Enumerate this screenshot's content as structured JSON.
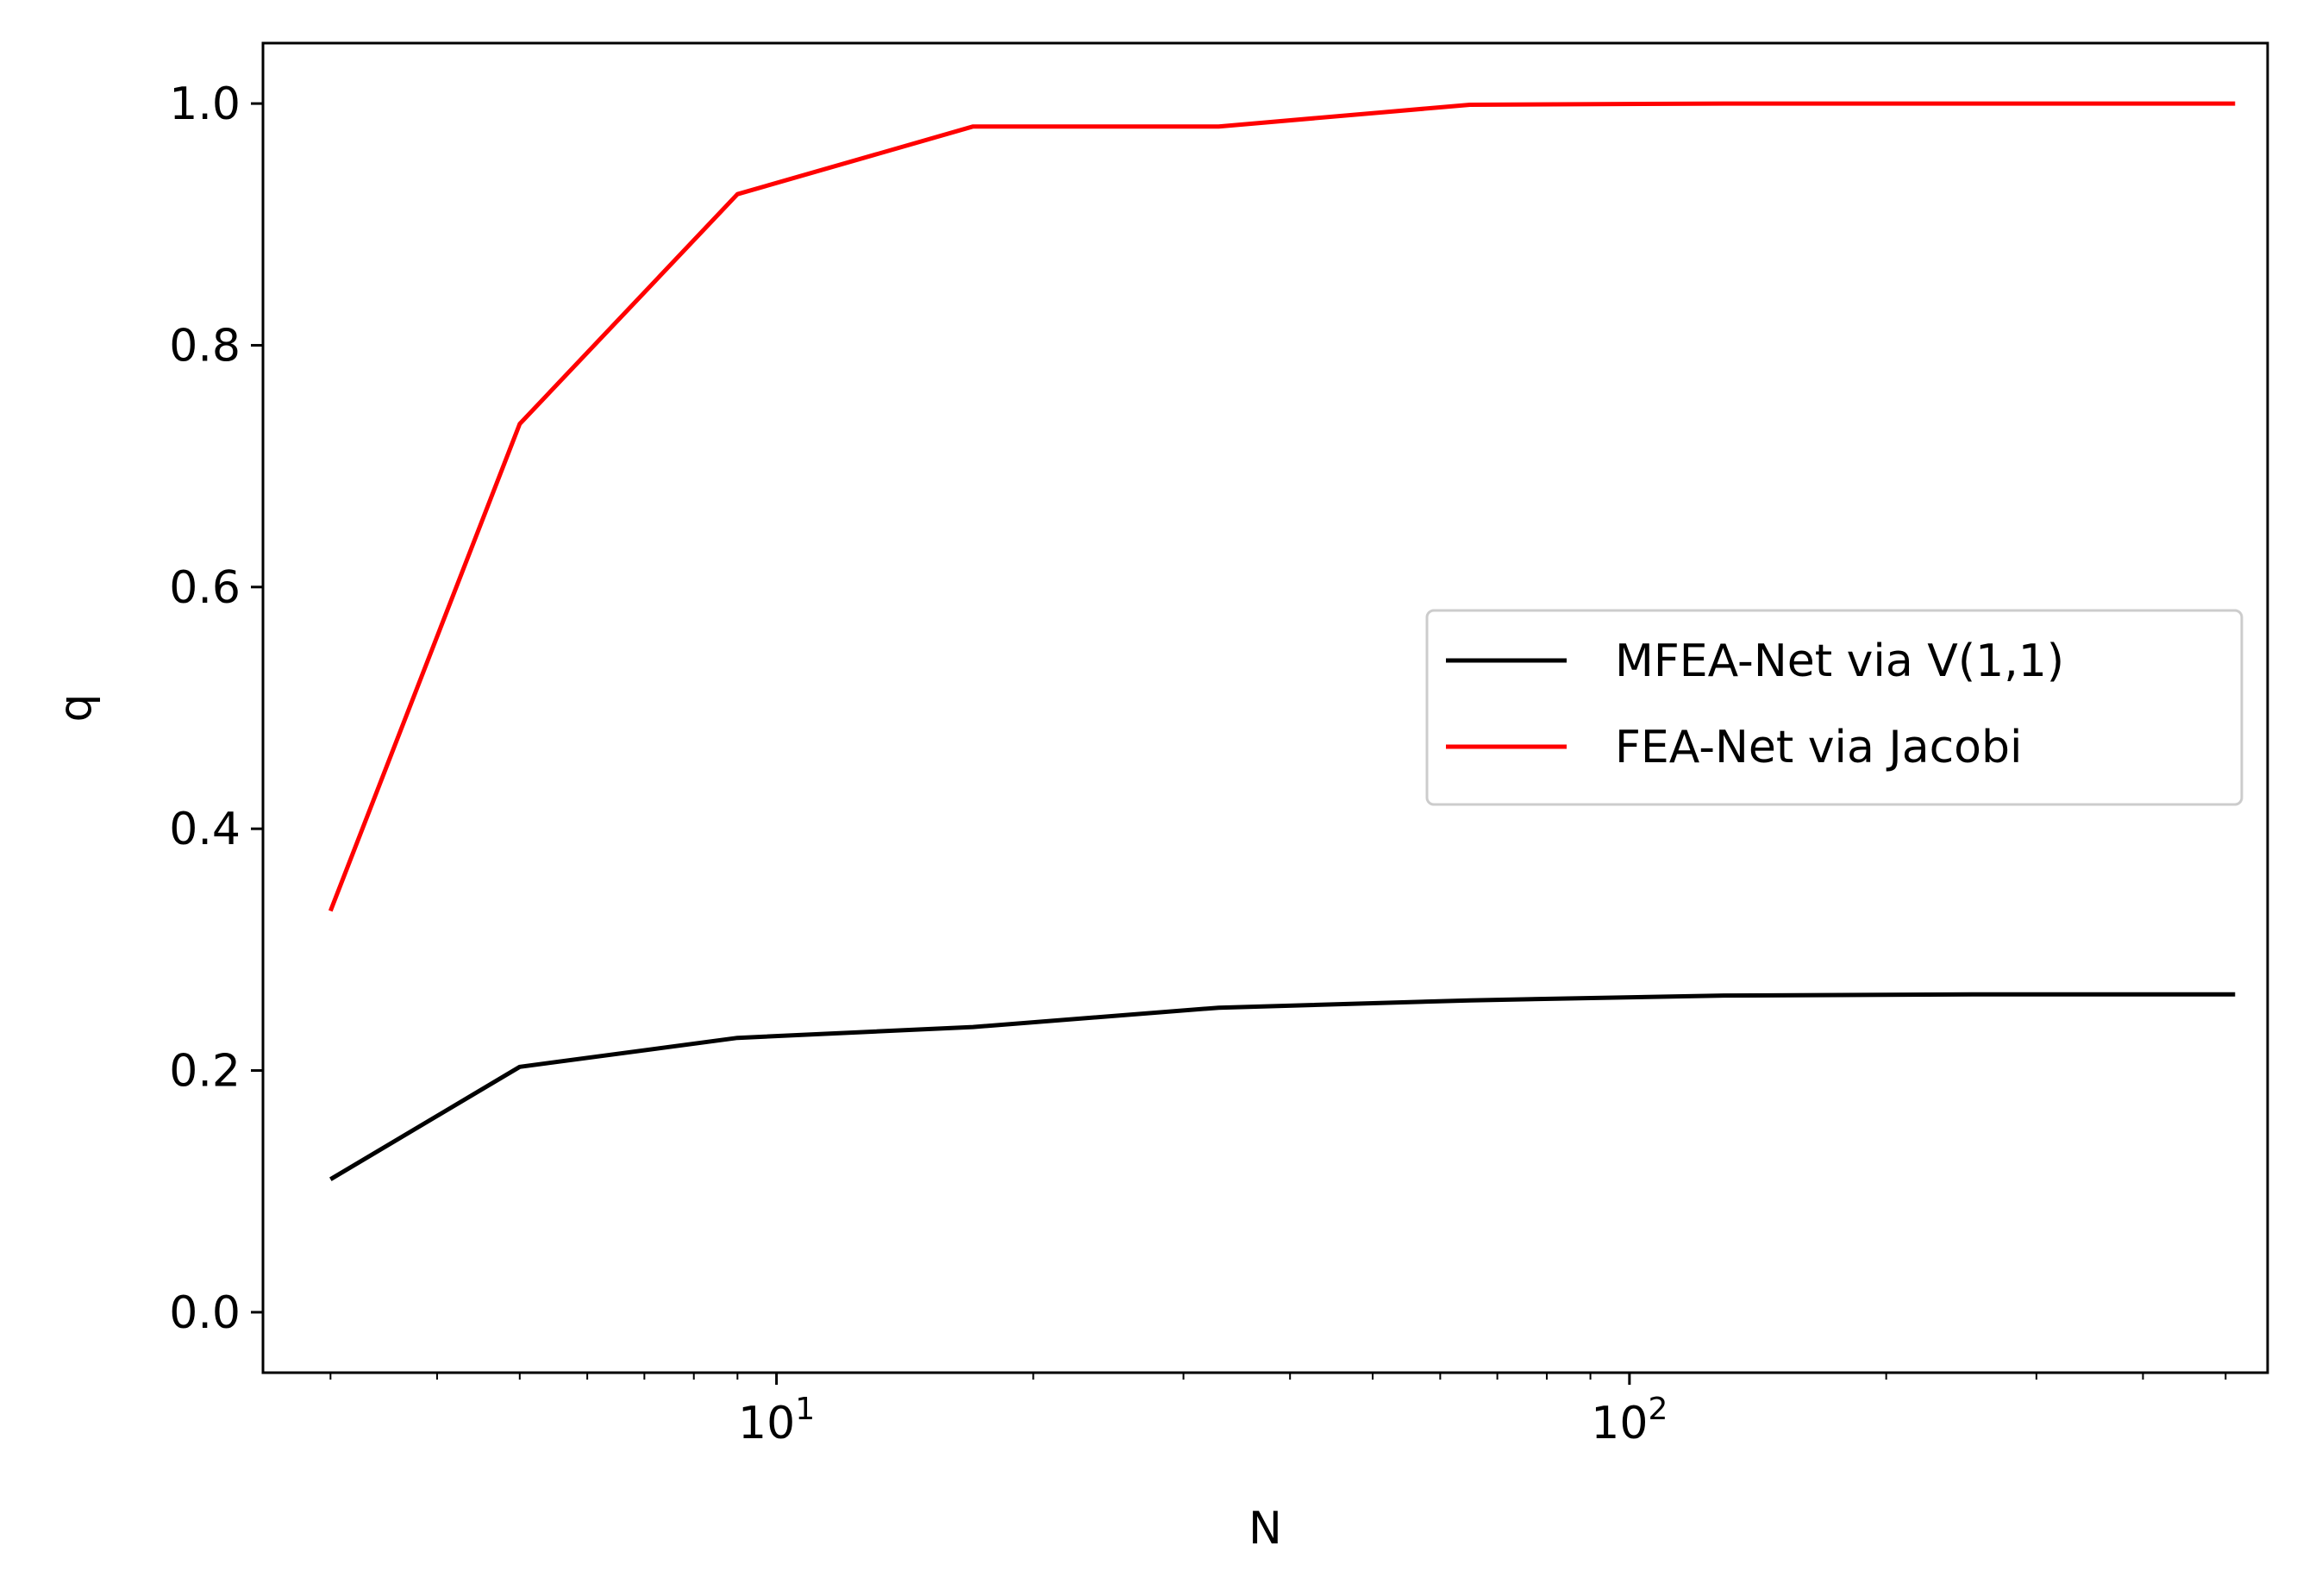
{
  "chart_data": {
    "type": "line",
    "title": "",
    "xlabel": "N",
    "ylabel": "q",
    "xscale": "log",
    "xlim": [
      2.5,
      560
    ],
    "ylim": [
      -0.05,
      1.05
    ],
    "x": [
      3,
      5,
      9,
      17,
      33,
      65,
      129,
      257,
      513
    ],
    "yticks": [
      {
        "value": 0.0,
        "label": "0.0"
      },
      {
        "value": 0.2,
        "label": "0.2"
      },
      {
        "value": 0.4,
        "label": "0.4"
      },
      {
        "value": 0.6,
        "label": "0.6"
      },
      {
        "value": 0.8,
        "label": "0.8"
      },
      {
        "value": 1.0,
        "label": "1.0"
      }
    ],
    "xticks_major": [
      {
        "value": 10,
        "base": "10",
        "exp": "1"
      },
      {
        "value": 100,
        "base": "10",
        "exp": "2"
      }
    ],
    "series": [
      {
        "name": "MFEA-Net via V(1,1)",
        "color": "#000000",
        "values": [
          0.11,
          0.203,
          0.227,
          0.236,
          0.252,
          0.258,
          0.262,
          0.263,
          0.263
        ]
      },
      {
        "name": "FEA-Net via Jacobi",
        "color": "#ff0000",
        "values": [
          0.332,
          0.735,
          0.925,
          0.981,
          0.981,
          0.999,
          1.0,
          1.0,
          1.0
        ]
      }
    ],
    "legend": {
      "position": "center-right"
    },
    "grid": false
  }
}
